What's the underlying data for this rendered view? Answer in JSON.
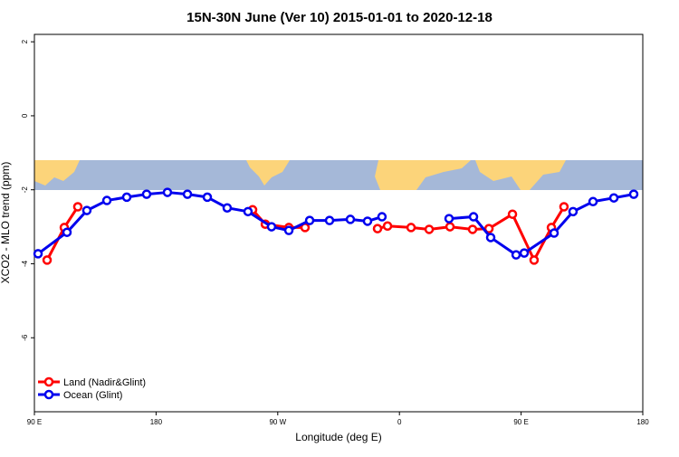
{
  "chart_data": {
    "type": "line",
    "title": "15N-30N June (Ver 10)   2015-01-01 to 2020-12-18",
    "x_label": "Longitude (deg E)",
    "y_label": "XCO2 - MLO trend (ppm)",
    "xlim": [
      90,
      540
    ],
    "ylim": [
      -8,
      2.2
    ],
    "xticks": [
      {
        "value": 90,
        "label": "90 E"
      },
      180,
      {
        "value": 270,
        "label": "90 W"
      },
      {
        "value": 360,
        "label": "0"
      },
      {
        "value": 450,
        "label": "90 E"
      },
      {
        "value": 540,
        "label": "180"
      }
    ],
    "yticks": [
      2,
      0,
      -2,
      -4,
      -6
    ],
    "legend": "bottom-left",
    "series": [
      {
        "name": "Land (Nadir&Glint)",
        "color": "#ff0000",
        "x": [
          99.4,
          112.1,
          122.1,
          null,
          251.4,
          260.8,
          278.2,
          290.2,
          null,
          343.8,
          351.2,
          368.6,
          382.0,
          397.4,
          414.1,
          426.2,
          443.6,
          459.6,
          472.4,
          481.7
        ],
        "values": [
          -3.9,
          -3.02,
          -2.46,
          null,
          -2.54,
          -2.93,
          -3.02,
          -3.02,
          null,
          -3.05,
          -2.98,
          -3.02,
          -3.07,
          -3.0,
          -3.07,
          -3.05,
          -2.66,
          -3.9,
          -3.02,
          -2.46
        ]
      },
      {
        "name": "Ocean (Glint)",
        "color": "#0000ee",
        "x": [
          92.7,
          114.1,
          128.8,
          143.6,
          158.3,
          173.0,
          188.4,
          203.2,
          217.9,
          232.6,
          248.0,
          265.4,
          278.2,
          293.6,
          308.3,
          323.7,
          336.4,
          347.1,
          null,
          396.7,
          414.8,
          427.5,
          446.3,
          452.3,
          474.4,
          488.4,
          503.2,
          518.6,
          533.3
        ],
        "values": [
          -3.73,
          -3.15,
          -2.56,
          -2.29,
          -2.2,
          -2.12,
          -2.07,
          -2.12,
          -2.2,
          -2.49,
          -2.59,
          -3.0,
          -3.1,
          -2.83,
          -2.83,
          -2.8,
          -2.85,
          -2.73,
          null,
          -2.78,
          -2.73,
          -3.29,
          -3.76,
          -3.71,
          -3.17,
          -2.59,
          -2.32,
          -2.22,
          -2.12
        ]
      }
    ]
  }
}
